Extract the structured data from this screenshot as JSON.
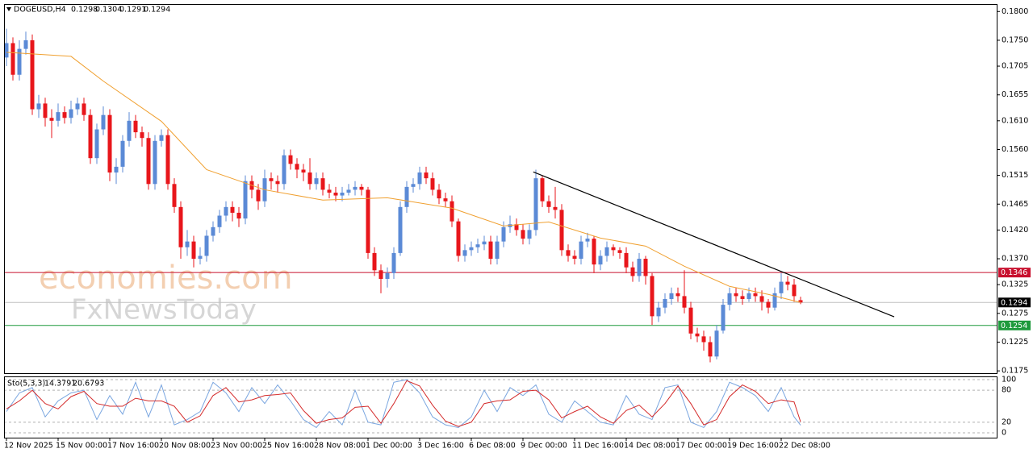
{
  "chart_data": {
    "type": "candlestick",
    "symbol": "DOGEUSD,H4",
    "xlim": [
      -0.375,
      153.375
    ],
    "xticks": [
      {
        "value": 0,
        "label": "12 Nov 2025"
      },
      {
        "value": 8,
        "label": "15 Nov 00:00"
      },
      {
        "value": 16,
        "label": "17 Nov 16:00"
      },
      {
        "value": 24,
        "label": "20 Nov 08:00"
      },
      {
        "value": 32,
        "label": "23 Nov 00:00"
      },
      {
        "value": 40,
        "label": "25 Nov 16:00"
      },
      {
        "value": 48,
        "label": "28 Nov 08:00"
      },
      {
        "value": 56,
        "label": "1 Dec 00:00"
      },
      {
        "value": 64,
        "label": "3 Dec 16:00"
      },
      {
        "value": 72,
        "label": "6 Dec 08:00"
      },
      {
        "value": 80,
        "label": "9 Dec 00:00"
      },
      {
        "value": 88,
        "label": "11 Dec 16:00"
      },
      {
        "value": 96,
        "label": "14 Dec 08:00"
      },
      {
        "value": 104,
        "label": "17 Dec 00:00"
      },
      {
        "value": 112,
        "label": "19 Dec 16:00"
      },
      {
        "value": 120,
        "label": "22 Dec 08:00"
      }
    ],
    "ylim": [
      0.1171,
      0.1813
    ],
    "yticks": [
      {
        "value": 0.18,
        "label": "0.1800"
      },
      {
        "value": 0.175,
        "label": "0.1750"
      },
      0.1705,
      0.1655,
      {
        "value": 0.161,
        "label": "0.1610"
      },
      {
        "value": 0.156,
        "label": "0.1560"
      },
      0.1515,
      0.1465,
      {
        "value": 0.142,
        "label": "0.1420"
      },
      {
        "value": 0.137,
        "label": "0.1370"
      },
      0.1325,
      0.1275,
      0.1225,
      0.1175
    ],
    "bull_color": "#5b8ad6",
    "bear_color": "#e8161b",
    "ohlc": [
      [
        0.172,
        0.177,
        0.1705,
        0.1745
      ],
      [
        0.1745,
        0.1755,
        0.168,
        0.169
      ],
      [
        0.169,
        0.175,
        0.168,
        0.1735
      ],
      [
        0.1735,
        0.1765,
        0.1725,
        0.175
      ],
      [
        0.175,
        0.176,
        0.162,
        0.163
      ],
      [
        0.163,
        0.1655,
        0.1615,
        0.164
      ],
      [
        0.164,
        0.165,
        0.16,
        0.1615
      ],
      [
        0.1615,
        0.163,
        0.158,
        0.161
      ],
      [
        0.161,
        0.164,
        0.16,
        0.1625
      ],
      [
        0.1625,
        0.1635,
        0.1605,
        0.1615
      ],
      [
        0.1615,
        0.1645,
        0.1605,
        0.163
      ],
      [
        0.163,
        0.165,
        0.162,
        0.164
      ],
      [
        0.164,
        0.165,
        0.161,
        0.162
      ],
      [
        0.162,
        0.163,
        0.1535,
        0.1545
      ],
      [
        0.1545,
        0.1605,
        0.1535,
        0.1595
      ],
      [
        0.1595,
        0.1635,
        0.1585,
        0.162
      ],
      [
        0.162,
        0.163,
        0.1505,
        0.152
      ],
      [
        0.152,
        0.1545,
        0.15,
        0.153
      ],
      [
        0.153,
        0.1585,
        0.152,
        0.1575
      ],
      [
        0.1575,
        0.1625,
        0.1565,
        0.161
      ],
      [
        0.161,
        0.162,
        0.158,
        0.159
      ],
      [
        0.159,
        0.16,
        0.1565,
        0.158
      ],
      [
        0.158,
        0.159,
        0.149,
        0.15
      ],
      [
        0.15,
        0.1585,
        0.149,
        0.1575
      ],
      [
        0.1575,
        0.1595,
        0.1565,
        0.1585
      ],
      [
        0.1585,
        0.1595,
        0.149,
        0.15
      ],
      [
        0.15,
        0.151,
        0.145,
        0.146
      ],
      [
        0.146,
        0.147,
        0.137,
        0.139
      ],
      [
        0.139,
        0.142,
        0.1375,
        0.14
      ],
      [
        0.14,
        0.141,
        0.1355,
        0.137
      ],
      [
        0.137,
        0.139,
        0.136,
        0.1375
      ],
      [
        0.1375,
        0.142,
        0.1365,
        0.141
      ],
      [
        0.141,
        0.1435,
        0.14,
        0.1425
      ],
      [
        0.1425,
        0.1455,
        0.1415,
        0.1445
      ],
      [
        0.1445,
        0.147,
        0.1435,
        0.146
      ],
      [
        0.146,
        0.147,
        0.1435,
        0.145
      ],
      [
        0.145,
        0.146,
        0.1425,
        0.144
      ],
      [
        0.144,
        0.1515,
        0.143,
        0.1505
      ],
      [
        0.1505,
        0.1515,
        0.1475,
        0.149
      ],
      [
        0.149,
        0.15,
        0.1455,
        0.147
      ],
      [
        0.147,
        0.1525,
        0.146,
        0.151
      ],
      [
        0.151,
        0.152,
        0.149,
        0.1505
      ],
      [
        0.1505,
        0.1515,
        0.1485,
        0.15
      ],
      [
        0.15,
        0.156,
        0.149,
        0.155
      ],
      [
        0.155,
        0.156,
        0.1525,
        0.1535
      ],
      [
        0.1535,
        0.1545,
        0.151,
        0.1525
      ],
      [
        0.1525,
        0.1535,
        0.1505,
        0.152
      ],
      [
        0.152,
        0.1545,
        0.149,
        0.15
      ],
      [
        0.15,
        0.152,
        0.149,
        0.151
      ],
      [
        0.151,
        0.152,
        0.148,
        0.149
      ],
      [
        0.149,
        0.15,
        0.1475,
        0.1485
      ],
      [
        0.1485,
        0.1495,
        0.147,
        0.148
      ],
      [
        0.148,
        0.1495,
        0.147,
        0.1485
      ],
      [
        0.1485,
        0.15,
        0.148,
        0.149
      ],
      [
        0.149,
        0.1505,
        0.148,
        0.1495
      ],
      [
        0.1495,
        0.15,
        0.148,
        0.149
      ],
      [
        0.149,
        0.1495,
        0.137,
        0.138
      ],
      [
        0.138,
        0.139,
        0.134,
        0.135
      ],
      [
        0.135,
        0.136,
        0.131,
        0.1335
      ],
      [
        0.1335,
        0.1355,
        0.132,
        0.1345
      ],
      [
        0.1345,
        0.139,
        0.1335,
        0.138
      ],
      [
        0.138,
        0.147,
        0.1375,
        0.146
      ],
      [
        0.146,
        0.1505,
        0.145,
        0.1495
      ],
      [
        0.1495,
        0.151,
        0.1485,
        0.15
      ],
      [
        0.15,
        0.153,
        0.149,
        0.152
      ],
      [
        0.152,
        0.153,
        0.15,
        0.151
      ],
      [
        0.151,
        0.152,
        0.148,
        0.149
      ],
      [
        0.149,
        0.15,
        0.1465,
        0.1475
      ],
      [
        0.1475,
        0.1485,
        0.146,
        0.147
      ],
      [
        0.147,
        0.148,
        0.1425,
        0.1435
      ],
      [
        0.1435,
        0.144,
        0.1365,
        0.1375
      ],
      [
        0.1375,
        0.1395,
        0.1365,
        0.1385
      ],
      [
        0.1385,
        0.14,
        0.1375,
        0.139
      ],
      [
        0.139,
        0.1405,
        0.138,
        0.1395
      ],
      [
        0.1395,
        0.141,
        0.1385,
        0.14
      ],
      [
        0.14,
        0.141,
        0.136,
        0.137
      ],
      [
        0.137,
        0.141,
        0.136,
        0.14
      ],
      [
        0.14,
        0.1435,
        0.139,
        0.1425
      ],
      [
        0.1425,
        0.1445,
        0.1415,
        0.143
      ],
      [
        0.143,
        0.144,
        0.141,
        0.142
      ],
      [
        0.142,
        0.143,
        0.1395,
        0.1405
      ],
      [
        0.1405,
        0.143,
        0.1395,
        0.142
      ],
      [
        0.142,
        0.1525,
        0.141,
        0.151
      ],
      [
        0.151,
        0.1515,
        0.146,
        0.147
      ],
      [
        0.147,
        0.148,
        0.145,
        0.146
      ],
      [
        0.146,
        0.1495,
        0.144,
        0.1455
      ],
      [
        0.1455,
        0.1465,
        0.1375,
        0.1385
      ],
      [
        0.1385,
        0.1395,
        0.1365,
        0.1375
      ],
      [
        0.1375,
        0.1385,
        0.136,
        0.137
      ],
      [
        0.137,
        0.141,
        0.136,
        0.14
      ],
      [
        0.14,
        0.1415,
        0.139,
        0.1405
      ],
      [
        0.1405,
        0.141,
        0.1345,
        0.136
      ],
      [
        0.136,
        0.1385,
        0.135,
        0.1375
      ],
      [
        0.1375,
        0.14,
        0.1365,
        0.139
      ],
      [
        0.139,
        0.1395,
        0.1375,
        0.1385
      ],
      [
        0.1385,
        0.139,
        0.137,
        0.138
      ],
      [
        0.138,
        0.139,
        0.1345,
        0.1355
      ],
      [
        0.1355,
        0.1365,
        0.133,
        0.134
      ],
      [
        0.134,
        0.138,
        0.133,
        0.137
      ],
      [
        0.137,
        0.1375,
        0.1325,
        0.134
      ],
      [
        0.134,
        0.1345,
        0.1255,
        0.127
      ],
      [
        0.127,
        0.1295,
        0.126,
        0.1285
      ],
      [
        0.1285,
        0.131,
        0.1275,
        0.13
      ],
      [
        0.13,
        0.132,
        0.129,
        0.131
      ],
      [
        0.131,
        0.132,
        0.1295,
        0.1305
      ],
      [
        0.1305,
        0.135,
        0.1275,
        0.1285
      ],
      [
        0.1285,
        0.1295,
        0.123,
        0.124
      ],
      [
        0.124,
        0.125,
        0.1225,
        0.1235
      ],
      [
        0.1235,
        0.1245,
        0.121,
        0.1225
      ],
      [
        0.1225,
        0.1235,
        0.119,
        0.12
      ],
      [
        0.12,
        0.1255,
        0.1195,
        0.1245
      ],
      [
        0.1245,
        0.13,
        0.124,
        0.129
      ],
      [
        0.129,
        0.132,
        0.128,
        0.131
      ],
      [
        0.131,
        0.132,
        0.1295,
        0.1305
      ],
      [
        0.1305,
        0.1315,
        0.129,
        0.13
      ],
      [
        0.13,
        0.132,
        0.1295,
        0.131
      ],
      [
        0.131,
        0.132,
        0.1295,
        0.1305
      ],
      [
        0.1305,
        0.1315,
        0.128,
        0.1295
      ],
      [
        0.1295,
        0.13,
        0.1275,
        0.1285
      ],
      [
        0.1285,
        0.132,
        0.128,
        0.131
      ],
      [
        0.131,
        0.1345,
        0.13,
        0.133
      ],
      [
        0.133,
        0.134,
        0.1315,
        0.1325
      ],
      [
        0.1325,
        0.1335,
        0.1295,
        0.1305
      ],
      [
        0.1298,
        0.1304,
        0.1291,
        0.1294
      ]
    ],
    "ma": {
      "color": "#f0a030",
      "x": [
        0,
        10,
        15,
        24,
        31,
        40,
        49,
        59,
        69,
        77,
        84,
        92,
        99,
        105,
        112,
        118,
        123
      ],
      "values": [
        0.1729,
        0.1722,
        0.1679,
        0.1609,
        0.1525,
        0.149,
        0.1472,
        0.1476,
        0.1458,
        0.1427,
        0.1434,
        0.1406,
        0.1392,
        0.1357,
        0.1322,
        0.1308,
        0.1294
      ]
    },
    "levels": [
      {
        "value": 0.1346,
        "color": "#c8102e"
      },
      {
        "value": 0.1294,
        "color": "#000000"
      },
      {
        "value": 0.1254,
        "color": "#1e9a3c"
      }
    ],
    "trendline": {
      "color": "#000000",
      "x": [
        81.6,
        137.5
      ],
      "y": [
        0.1521,
        0.1269
      ]
    },
    "watermark": [
      "economies.com",
      "FxNewsToday"
    ],
    "stochastic": {
      "title": "Sto(5,3,3)",
      "ylim": [
        -9,
        106
      ],
      "yticks": [
        100,
        80,
        20,
        0
      ],
      "x": [
        0,
        2,
        4,
        6,
        8,
        10,
        12,
        14,
        16,
        18,
        20,
        22,
        24,
        26,
        28,
        30,
        32,
        34,
        36,
        38,
        40,
        42,
        44,
        46,
        48,
        50,
        52,
        54,
        56,
        58,
        60,
        62,
        64,
        66,
        68,
        70,
        72,
        74,
        76,
        78,
        80,
        82,
        84,
        86,
        88,
        90,
        92,
        94,
        96,
        98,
        100,
        102,
        104,
        106,
        108,
        110,
        112,
        114,
        116,
        118,
        120,
        122,
        123
      ],
      "k": {
        "color": "#7aa6e0",
        "values": [
          40,
          75,
          85,
          30,
          60,
          75,
          80,
          25,
          70,
          35,
          95,
          30,
          90,
          15,
          25,
          40,
          95,
          75,
          40,
          85,
          55,
          90,
          60,
          25,
          10,
          40,
          15,
          80,
          20,
          15,
          95,
          100,
          75,
          30,
          15,
          10,
          30,
          80,
          40,
          85,
          70,
          90,
          35,
          20,
          60,
          40,
          20,
          15,
          70,
          35,
          25,
          85,
          90,
          20,
          10,
          40,
          95,
          85,
          70,
          40,
          85,
          30,
          14.3791
        ]
      },
      "d": {
        "color": "#d42a2a",
        "values": [
          45,
          60,
          80,
          55,
          45,
          68,
          78,
          55,
          50,
          50,
          65,
          60,
          60,
          50,
          20,
          32,
          70,
          85,
          58,
          62,
          70,
          72,
          75,
          42,
          18,
          25,
          28,
          48,
          50,
          18,
          55,
          98,
          88,
          52,
          22,
          12,
          20,
          55,
          60,
          62,
          78,
          80,
          62,
          28,
          40,
          50,
          30,
          18,
          42,
          52,
          30,
          55,
          88,
          55,
          15,
          25,
          68,
          90,
          78,
          55,
          62,
          58,
          20.6793
        ]
      }
    }
  }
}
